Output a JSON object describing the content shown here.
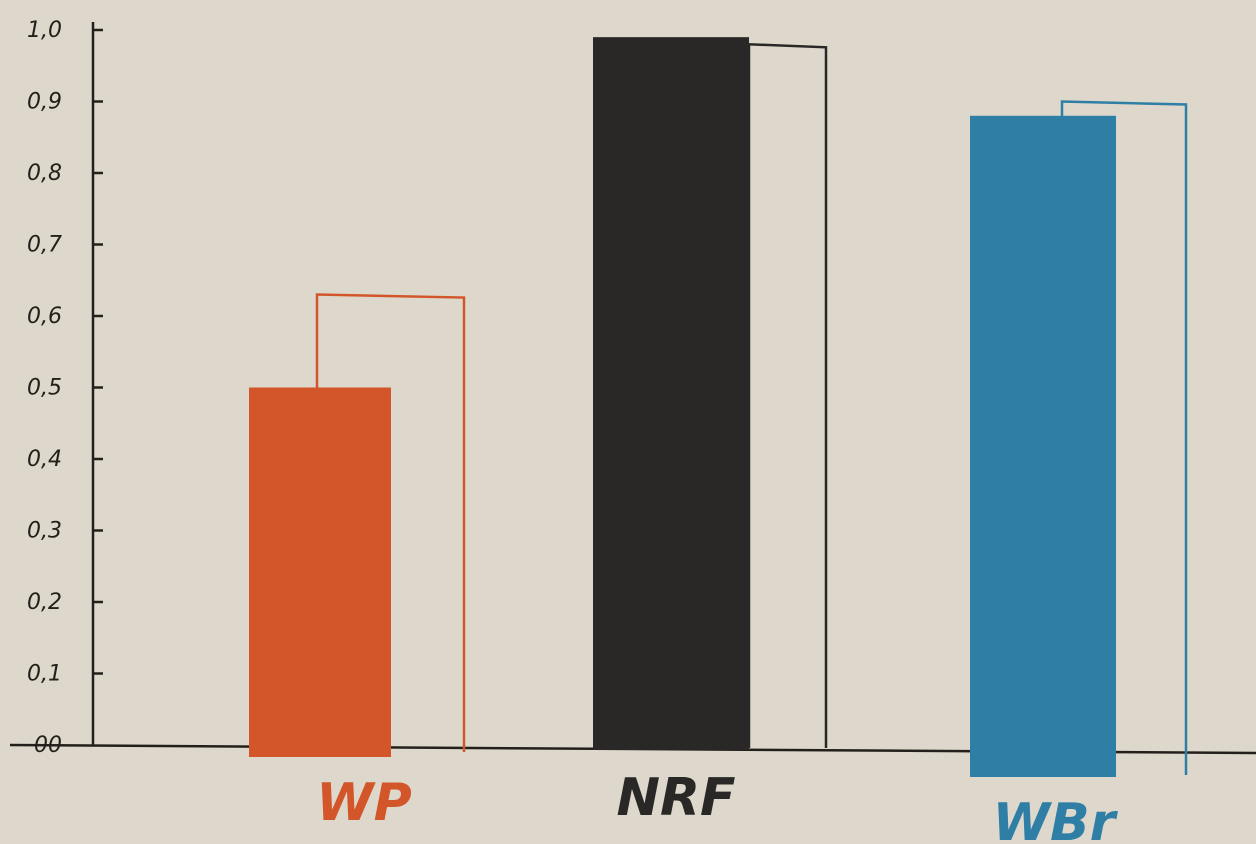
{
  "chart_data": {
    "type": "bar",
    "categories": [
      "WP",
      "NRF",
      "WBr"
    ],
    "series": [
      {
        "values": [
          0.5,
          0.99,
          0.88
        ]
      },
      {
        "values": [
          0.63,
          0.98,
          0.9
        ]
      }
    ],
    "ylim": [
      0,
      1.0
    ],
    "y_ticks": [
      0.0,
      0.1,
      0.2,
      0.3,
      0.4,
      0.5,
      0.6,
      0.7,
      0.8,
      0.9,
      1.0
    ],
    "y_tick_labels": [
      "00",
      "0,1",
      "0,2",
      "0,3",
      "0,4",
      "0,5",
      "0,6",
      "0,7",
      "0,8",
      "0,9",
      "1,0"
    ],
    "grid": false,
    "legend": "none",
    "colors": {
      "WP": "#d2562a",
      "NRF": "#2a2826",
      "WBr": "#2f7ea5",
      "axis": "#23201c",
      "background": "#ddd8cb"
    }
  }
}
